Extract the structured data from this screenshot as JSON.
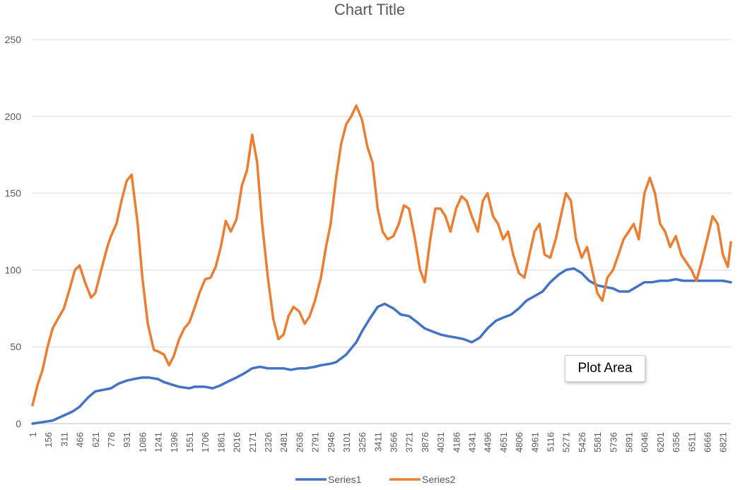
{
  "chart_data": {
    "type": "line",
    "title": "Chart Title",
    "xlabel": "",
    "ylabel": "",
    "ylim": [
      0,
      250
    ],
    "yticks": [
      0,
      50,
      100,
      150,
      200,
      250
    ],
    "xlim": [
      1,
      6900
    ],
    "x_tick_labels": [
      "1",
      "156",
      "311",
      "466",
      "621",
      "776",
      "931",
      "1086",
      "1241",
      "1396",
      "1551",
      "1706",
      "1861",
      "2016",
      "2171",
      "2326",
      "2481",
      "2636",
      "2791",
      "2946",
      "3101",
      "3256",
      "3411",
      "3566",
      "3721",
      "3876",
      "4031",
      "4186",
      "4341",
      "4496",
      "4651",
      "4806",
      "4961",
      "5116",
      "5271",
      "5426",
      "5581",
      "5736",
      "5891",
      "6046",
      "6201",
      "6356",
      "6511",
      "6666",
      "6821"
    ],
    "grid": "horizontal",
    "legend": "bottom",
    "series": [
      {
        "name": "Series1",
        "color": "#4472C4",
        "x": [
          1,
          100,
          200,
          300,
          400,
          466,
          550,
          621,
          700,
          776,
          850,
          931,
          1000,
          1086,
          1150,
          1241,
          1300,
          1396,
          1450,
          1551,
          1600,
          1706,
          1780,
          1861,
          1950,
          2016,
          2100,
          2171,
          2250,
          2326,
          2400,
          2481,
          2550,
          2636,
          2700,
          2791,
          2850,
          2946,
          3000,
          3101,
          3200,
          3256,
          3330,
          3411,
          3480,
          3566,
          3640,
          3721,
          3800,
          3876,
          3950,
          4031,
          4100,
          4186,
          4260,
          4341,
          4420,
          4496,
          4580,
          4651,
          4730,
          4806,
          4880,
          4961,
          5040,
          5116,
          5200,
          5271,
          5350,
          5426,
          5500,
          5581,
          5650,
          5736,
          5800,
          5891,
          5970,
          6046,
          6120,
          6201,
          6280,
          6356,
          6430,
          6511,
          6590,
          6666,
          6740,
          6821,
          6900
        ],
        "y": [
          0,
          1,
          2,
          5,
          8,
          11,
          17,
          21,
          22,
          23,
          26,
          28,
          29,
          30,
          30,
          29,
          27,
          25,
          24,
          23,
          24,
          24,
          23,
          25,
          28,
          30,
          33,
          36,
          37,
          36,
          36,
          36,
          35,
          36,
          36,
          37,
          38,
          39,
          40,
          45,
          53,
          60,
          68,
          76,
          78,
          75,
          71,
          70,
          66,
          62,
          60,
          58,
          57,
          56,
          55,
          53,
          56,
          62,
          67,
          69,
          71,
          75,
          80,
          83,
          86,
          92,
          97,
          100,
          101,
          98,
          93,
          90,
          89,
          88,
          86,
          86,
          89,
          92,
          92,
          93,
          93,
          94,
          93,
          93,
          93,
          93,
          93,
          93,
          92
        ]
      },
      {
        "name": "Series2",
        "color": "#ED7D31",
        "x": [
          1,
          50,
          100,
          150,
          200,
          250,
          311,
          370,
          420,
          466,
          520,
          580,
          621,
          680,
          740,
          776,
          830,
          880,
          931,
          980,
          1040,
          1086,
          1140,
          1200,
          1241,
          1300,
          1350,
          1396,
          1450,
          1500,
          1551,
          1600,
          1650,
          1706,
          1760,
          1810,
          1861,
          1910,
          1960,
          2016,
          2070,
          2120,
          2171,
          2220,
          2270,
          2326,
          2380,
          2430,
          2481,
          2530,
          2580,
          2636,
          2690,
          2740,
          2791,
          2850,
          2900,
          2946,
          3000,
          3050,
          3101,
          3150,
          3200,
          3256,
          3310,
          3360,
          3411,
          3460,
          3510,
          3566,
          3620,
          3670,
          3721,
          3780,
          3830,
          3876,
          3930,
          3980,
          4031,
          4080,
          4130,
          4186,
          4240,
          4290,
          4341,
          4400,
          4450,
          4496,
          4550,
          4600,
          4651,
          4700,
          4750,
          4806,
          4860,
          4910,
          4961,
          5010,
          5060,
          5116,
          5170,
          5220,
          5271,
          5320,
          5370,
          5426,
          5480,
          5530,
          5581,
          5630,
          5680,
          5736,
          5790,
          5840,
          5891,
          5940,
          5990,
          6046,
          6100,
          6150,
          6201,
          6250,
          6300,
          6356,
          6410,
          6460,
          6511,
          6560,
          6610,
          6666,
          6720,
          6770,
          6821,
          6870,
          6900
        ],
        "y": [
          12,
          25,
          35,
          50,
          62,
          68,
          75,
          88,
          100,
          103,
          92,
          82,
          85,
          100,
          115,
          122,
          130,
          145,
          158,
          162,
          130,
          95,
          65,
          48,
          47,
          45,
          38,
          44,
          55,
          62,
          66,
          75,
          85,
          94,
          95,
          102,
          115,
          132,
          125,
          133,
          155,
          165,
          188,
          170,
          130,
          95,
          68,
          55,
          58,
          70,
          76,
          73,
          65,
          70,
          80,
          95,
          115,
          130,
          160,
          182,
          195,
          200,
          207,
          198,
          180,
          170,
          140,
          125,
          120,
          122,
          130,
          142,
          140,
          120,
          100,
          92,
          120,
          140,
          140,
          135,
          125,
          140,
          148,
          145,
          135,
          125,
          145,
          150,
          135,
          130,
          120,
          125,
          110,
          98,
          95,
          110,
          125,
          130,
          110,
          108,
          120,
          135,
          150,
          145,
          120,
          108,
          115,
          100,
          85,
          80,
          95,
          100,
          110,
          120,
          125,
          130,
          120,
          150,
          160,
          150,
          130,
          125,
          115,
          122,
          110,
          105,
          100,
          93,
          105,
          120,
          135,
          130,
          110,
          102,
          118
        ]
      }
    ]
  },
  "tooltip": {
    "label": "Plot Area"
  }
}
